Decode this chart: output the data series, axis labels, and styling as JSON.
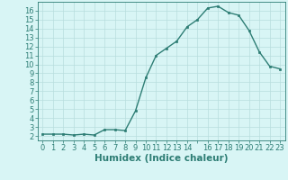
{
  "xlabel": "Humidex (Indice chaleur)",
  "x": [
    0,
    1,
    2,
    3,
    4,
    5,
    6,
    7,
    8,
    9,
    10,
    11,
    12,
    13,
    14,
    15,
    16,
    17,
    18,
    19,
    20,
    21,
    22,
    23
  ],
  "y": [
    2.2,
    2.2,
    2.2,
    2.1,
    2.2,
    2.1,
    2.7,
    2.7,
    2.6,
    4.8,
    8.5,
    11.0,
    11.8,
    12.6,
    14.2,
    15.0,
    16.3,
    16.5,
    15.8,
    15.5,
    13.8,
    11.4,
    9.8,
    9.5
  ],
  "line_color": "#2d7d74",
  "marker_color": "#2d7d74",
  "bg_color": "#d8f5f5",
  "grid_color": "#b8dedd",
  "spine_color": "#2d7d74",
  "tick_color": "#2d7d74",
  "label_color": "#2d7d74",
  "xlim": [
    -0.5,
    23.5
  ],
  "ylim": [
    1.5,
    17.0
  ],
  "yticks": [
    2,
    3,
    4,
    5,
    6,
    7,
    8,
    9,
    10,
    11,
    12,
    13,
    14,
    15,
    16
  ],
  "xtick_labels": [
    "0",
    "1",
    "2",
    "3",
    "4",
    "5",
    "6",
    "7",
    "8",
    "9",
    "10",
    "11",
    "12",
    "13",
    "14",
    "",
    "16",
    "17",
    "18",
    "19",
    "20",
    "21",
    "22",
    "23"
  ],
  "fontsize_ticks": 6,
  "fontsize_label": 7.5
}
